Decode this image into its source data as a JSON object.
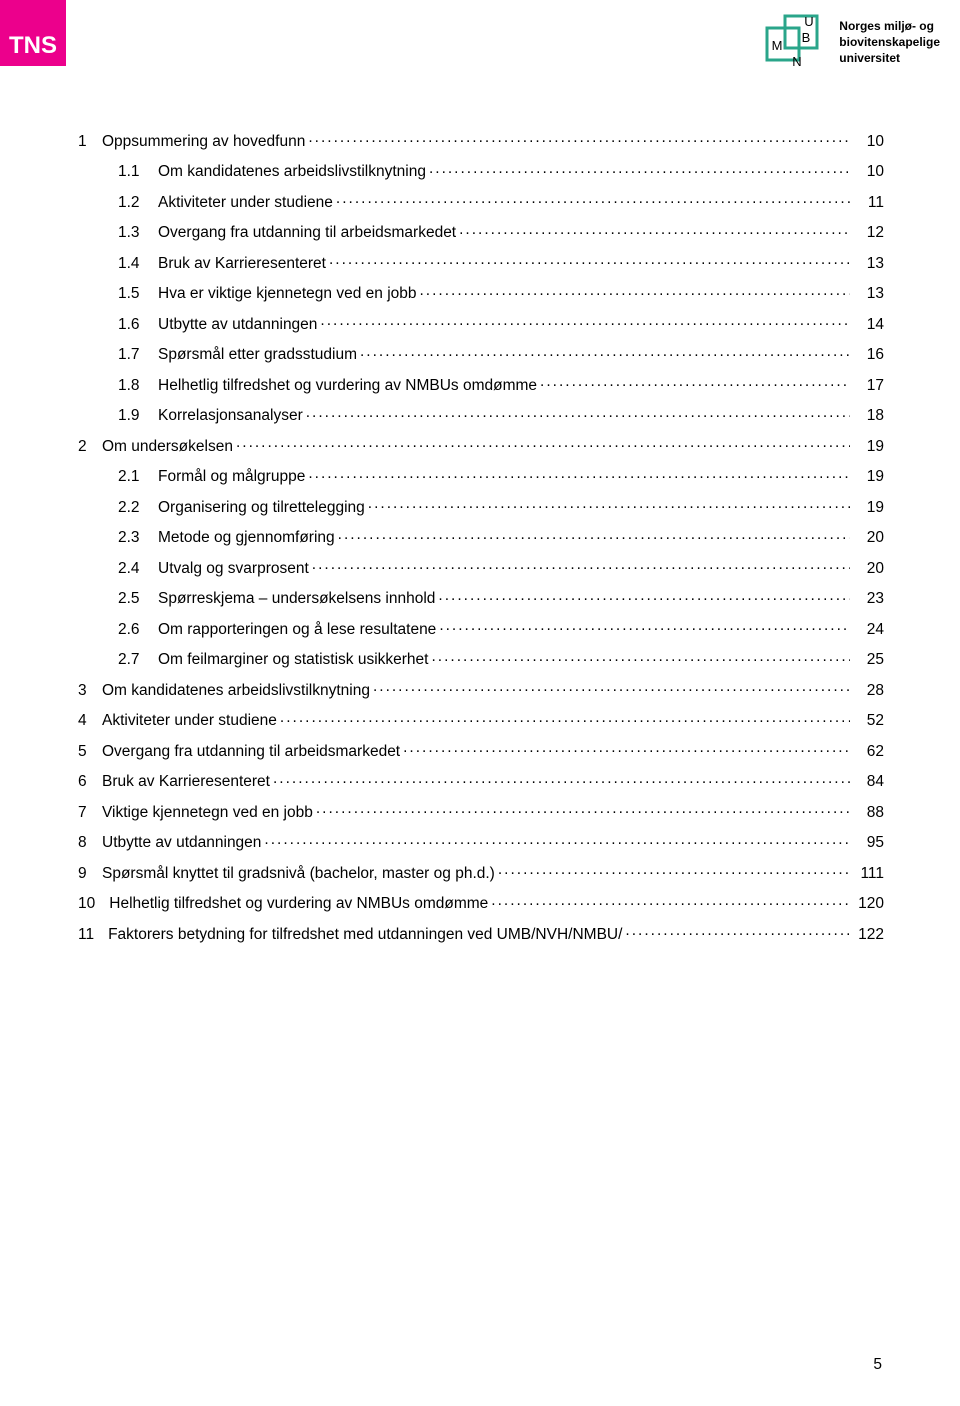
{
  "colors": {
    "tns_bg": "#ec008c",
    "tns_text": "#ffffff",
    "nmbu_green": "#2aa58a",
    "text": "#000000",
    "page_bg": "#ffffff"
  },
  "header": {
    "tns_label": "TNS",
    "nmbu_letters": {
      "u": "U",
      "b": "B",
      "m": "M",
      "n": "N"
    },
    "nmbu_text_lines": [
      "Norges miljø- og",
      "biovitenskapelige",
      "universitet"
    ]
  },
  "toc": {
    "font_size_pt": 12,
    "entries": [
      {
        "level": 0,
        "num": "1",
        "title": "Oppsummering av hovedfunn",
        "page": "10"
      },
      {
        "level": 1,
        "num": "1.1",
        "title": "Om kandidatenes arbeidslivstilknytning",
        "page": "10"
      },
      {
        "level": 1,
        "num": "1.2",
        "title": "Aktiviteter under studiene",
        "page": "11"
      },
      {
        "level": 1,
        "num": "1.3",
        "title": "Overgang fra utdanning til arbeidsmarkedet",
        "page": "12"
      },
      {
        "level": 1,
        "num": "1.4",
        "title": "Bruk av Karrieresenteret",
        "page": "13"
      },
      {
        "level": 1,
        "num": "1.5",
        "title": "Hva er viktige kjennetegn ved en jobb",
        "page": "13"
      },
      {
        "level": 1,
        "num": "1.6",
        "title": "Utbytte av utdanningen",
        "page": "14"
      },
      {
        "level": 1,
        "num": "1.7",
        "title": "Spørsmål etter gradsstudium",
        "page": "16"
      },
      {
        "level": 1,
        "num": "1.8",
        "title": "Helhetlig tilfredshet og vurdering av NMBUs omdømme",
        "page": "17"
      },
      {
        "level": 1,
        "num": "1.9",
        "title": "Korrelasjonsanalyser",
        "page": "18"
      },
      {
        "level": 0,
        "num": "2",
        "title": "Om undersøkelsen",
        "page": "19"
      },
      {
        "level": 1,
        "num": "2.1",
        "title": "Formål og målgruppe",
        "page": "19"
      },
      {
        "level": 1,
        "num": "2.2",
        "title": "Organisering og tilrettelegging",
        "page": "19"
      },
      {
        "level": 1,
        "num": "2.3",
        "title": "Metode og gjennomføring",
        "page": "20"
      },
      {
        "level": 1,
        "num": "2.4",
        "title": "Utvalg og svarprosent",
        "page": "20"
      },
      {
        "level": 1,
        "num": "2.5",
        "title": "Spørreskjema – undersøkelsens innhold",
        "page": "23"
      },
      {
        "level": 1,
        "num": "2.6",
        "title": "Om rapporteringen og å lese resultatene",
        "page": "24"
      },
      {
        "level": 1,
        "num": "2.7",
        "title": "Om feilmarginer og statistisk usikkerhet",
        "page": "25"
      },
      {
        "level": 0,
        "num": "3",
        "title": "Om kandidatenes arbeidslivstilknytning",
        "page": "28"
      },
      {
        "level": 0,
        "num": "4",
        "title": "Aktiviteter under studiene",
        "page": "52"
      },
      {
        "level": 0,
        "num": "5",
        "title": "Overgang fra utdanning til arbeidsmarkedet",
        "page": "62"
      },
      {
        "level": 0,
        "num": "6",
        "title": "Bruk av Karrieresenteret",
        "page": "84"
      },
      {
        "level": 0,
        "num": "7",
        "title": "Viktige kjennetegn ved en jobb",
        "page": "88"
      },
      {
        "level": 0,
        "num": "8",
        "title": "Utbytte av utdanningen",
        "page": "95"
      },
      {
        "level": 0,
        "num": "9",
        "title": "Spørsmål knyttet til gradsnivå (bachelor, master og ph.d.)",
        "page": "111"
      },
      {
        "level": 0,
        "num": "10",
        "title": "Helhetlig tilfredshet og vurdering av NMBUs omdømme",
        "page": "120"
      },
      {
        "level": 0,
        "num": "11",
        "title": "Faktorers betydning for tilfredshet med utdanningen ved UMB/NVH/NMBU/",
        "page": "122"
      }
    ]
  },
  "page_number": "5"
}
